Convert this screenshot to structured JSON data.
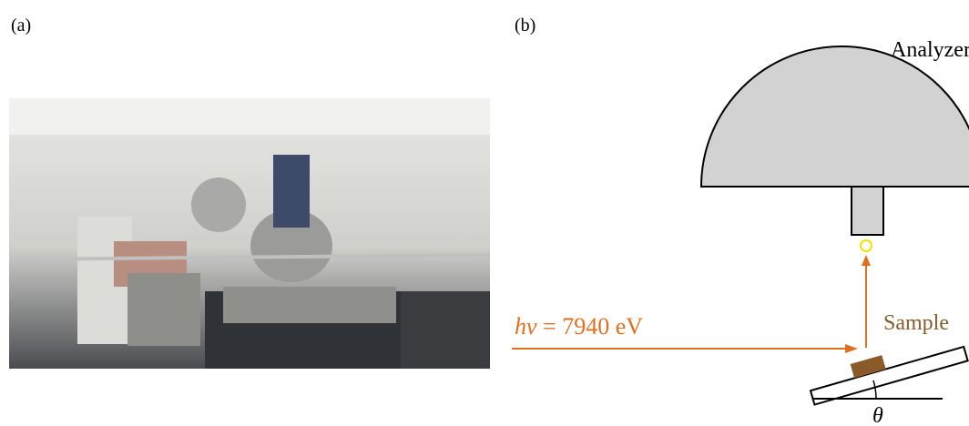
{
  "panels": [
    {
      "label": "(a)"
    },
    {
      "label": "(b)",
      "analyzer": "Analyzer",
      "sample": "Sample",
      "photon_symbol": "hv",
      "photon_energy": "= 7940 eV",
      "angle": "θ"
    }
  ]
}
